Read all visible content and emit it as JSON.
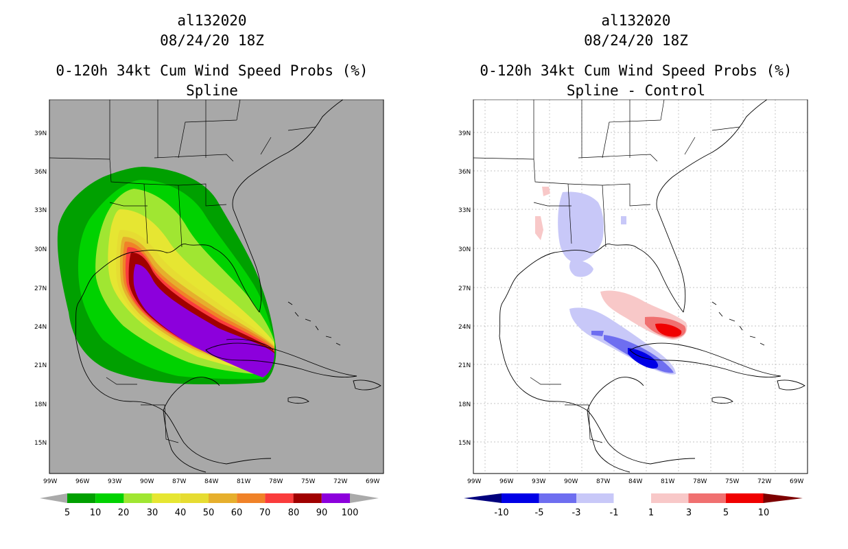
{
  "left_panel": {
    "storm_id": "al132020",
    "datetime": "08/24/20 18Z",
    "product": "0-120h 34kt Cum Wind Speed Probs (%)",
    "subtitle": "Spline",
    "colorbar": {
      "labels": [
        "5",
        "10",
        "20",
        "30",
        "40",
        "50",
        "60",
        "70",
        "80",
        "90",
        "100"
      ],
      "colors": [
        "#00a000",
        "#00d200",
        "#a0e632",
        "#e6e632",
        "#e6dc32",
        "#e6af2d",
        "#f08228",
        "#fa3c3c",
        "#a00000",
        "#8c00dc"
      ],
      "under_color": "#aaaaaa",
      "over_color": "#aaaaaa"
    },
    "background_color": "#a8a8a8"
  },
  "right_panel": {
    "storm_id": "al132020",
    "datetime": "08/24/20 18Z",
    "product": "0-120h 34kt Cum Wind Speed Probs (%)",
    "subtitle": "Spline - Control",
    "colorbar": {
      "labels": [
        "-10",
        "-5",
        "-3",
        "-1",
        "1",
        "3",
        "5",
        "10"
      ],
      "colors": [
        "#0000e6",
        "#6e6ef0",
        "#c8c8f8",
        "#ffffff",
        "#f8c8c8",
        "#f07070",
        "#f00000"
      ],
      "under_color": "#00007d",
      "over_color": "#7d0000"
    },
    "background_color": "#ffffff"
  },
  "axes": {
    "lat_labels": [
      "39N",
      "36N",
      "33N",
      "30N",
      "27N",
      "24N",
      "21N",
      "18N",
      "15N"
    ],
    "lon_labels": [
      "99W",
      "96W",
      "93W",
      "90W",
      "87W",
      "84W",
      "81W",
      "78W",
      "75W",
      "72W",
      "69W"
    ]
  },
  "regions": {
    "prob_levels": [
      5,
      10,
      20,
      30,
      40,
      50,
      60,
      70,
      80,
      90
    ],
    "diff_features": [
      "pink-north-gulf",
      "blue-mississippi",
      "blue-louisiana",
      "pink-gulf-band",
      "red-florida-keys",
      "blue-cuba-band",
      "dark-blue-cuba"
    ]
  }
}
